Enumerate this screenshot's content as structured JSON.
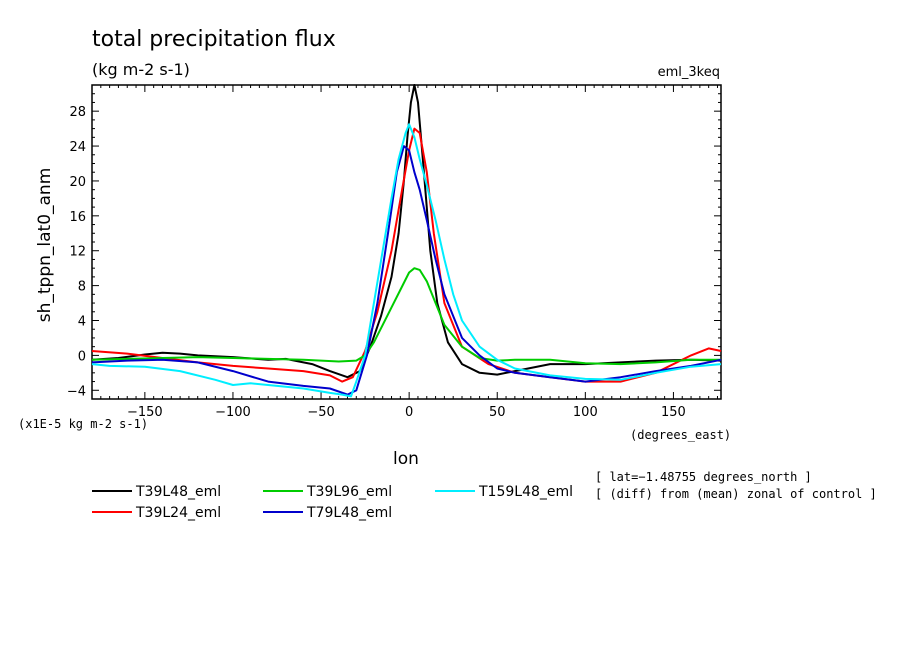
{
  "chart_data": {
    "type": "line",
    "title": "total precipitation flux",
    "units": "(kg m-2 s-1)",
    "experiment": "eml_3keq",
    "ylabel": "sh_tppn_lat0_anm",
    "xlabel": "lon",
    "x_units": "(degrees_east)",
    "y_scale_note": "(x1E-5 kg m-2 s-1)",
    "xlim": [
      -180,
      177
    ],
    "ylim": [
      -5,
      31
    ],
    "xticks": [
      -150,
      -100,
      -50,
      0,
      50,
      100,
      150
    ],
    "xtick_labels": [
      "−150",
      "−100",
      "−50",
      "0",
      "50",
      "100",
      "150"
    ],
    "yticks": [
      -4,
      0,
      4,
      8,
      12,
      16,
      20,
      24,
      28
    ],
    "ytick_labels": [
      "−4",
      "0",
      "4",
      "8",
      "12",
      "16",
      "20",
      "24",
      "28"
    ],
    "notes": [
      "[ lat=−1.48755 degrees_north ]",
      "[ (diff) from (mean) zonal of control ]"
    ],
    "legend_placement": "bottom",
    "grid": false,
    "series": [
      {
        "name": "T39L48_eml",
        "color": "#000000",
        "x": [
          -180,
          -165,
          -150,
          -140,
          -130,
          -120,
          -100,
          -80,
          -70,
          -55,
          -45,
          -35,
          -28,
          -22,
          -16,
          -10,
          -6,
          -3,
          -1,
          1,
          3,
          5,
          8,
          12,
          16,
          22,
          30,
          40,
          50,
          60,
          80,
          100,
          120,
          140,
          160,
          177
        ],
        "y": [
          -0.5,
          -0.3,
          0.1,
          0.3,
          0.2,
          0.0,
          -0.2,
          -0.5,
          -0.4,
          -1.0,
          -1.8,
          -2.5,
          -1.8,
          1.0,
          4.5,
          9.0,
          14.0,
          20.0,
          25.0,
          29.0,
          31.0,
          29.0,
          22.0,
          12.0,
          6.0,
          1.5,
          -1.0,
          -2.0,
          -2.2,
          -1.8,
          -1.0,
          -1.0,
          -0.8,
          -0.6,
          -0.5,
          -0.6
        ]
      },
      {
        "name": "T39L24_eml",
        "color": "#ff0000",
        "x": [
          -180,
          -160,
          -140,
          -120,
          -100,
          -80,
          -60,
          -45,
          -38,
          -32,
          -25,
          -18,
          -10,
          -4,
          0,
          3,
          6,
          10,
          14,
          20,
          30,
          45,
          60,
          80,
          100,
          120,
          140,
          160,
          170,
          177
        ],
        "y": [
          0.5,
          0.2,
          -0.3,
          -0.8,
          -1.2,
          -1.5,
          -1.8,
          -2.3,
          -3.0,
          -2.5,
          0.5,
          5.0,
          12.0,
          19.0,
          23.5,
          26.0,
          25.5,
          21.0,
          14.0,
          6.0,
          1.0,
          -1.0,
          -2.0,
          -2.5,
          -3.0,
          -3.0,
          -2.0,
          0.0,
          0.8,
          0.5
        ]
      },
      {
        "name": "T39L96_eml",
        "color": "#00cc00",
        "x": [
          -180,
          -160,
          -140,
          -120,
          -100,
          -80,
          -60,
          -40,
          -30,
          -25,
          -20,
          -15,
          -10,
          -5,
          0,
          3,
          6,
          10,
          15,
          20,
          30,
          40,
          50,
          60,
          80,
          100,
          120,
          140,
          160,
          177
        ],
        "y": [
          -0.5,
          -0.4,
          -0.3,
          -0.2,
          -0.3,
          -0.4,
          -0.5,
          -0.7,
          -0.6,
          0.0,
          1.5,
          3.5,
          5.5,
          7.5,
          9.5,
          10.0,
          9.8,
          8.5,
          6.0,
          3.5,
          1.0,
          -0.3,
          -0.6,
          -0.5,
          -0.5,
          -0.9,
          -1.0,
          -0.8,
          -0.5,
          -0.5
        ]
      },
      {
        "name": "T79L48_eml",
        "color": "#0000cc",
        "x": [
          -180,
          -160,
          -140,
          -120,
          -100,
          -80,
          -60,
          -45,
          -35,
          -30,
          -24,
          -18,
          -12,
          -7,
          -3,
          0,
          3,
          6,
          10,
          15,
          20,
          30,
          40,
          50,
          60,
          80,
          100,
          120,
          140,
          160,
          177
        ],
        "y": [
          -0.8,
          -0.6,
          -0.5,
          -0.8,
          -1.8,
          -3.0,
          -3.5,
          -3.8,
          -4.5,
          -4.0,
          0.0,
          6.0,
          14.0,
          21.0,
          24.0,
          23.5,
          21.0,
          19.0,
          15.5,
          11.0,
          7.0,
          2.0,
          0.0,
          -1.5,
          -2.0,
          -2.5,
          -3.0,
          -2.5,
          -1.8,
          -1.2,
          -0.5
        ]
      },
      {
        "name": "T159L48_eml",
        "color": "#00eeff",
        "x": [
          -180,
          -170,
          -150,
          -130,
          -110,
          -100,
          -90,
          -75,
          -60,
          -45,
          -38,
          -33,
          -30,
          -25,
          -20,
          -15,
          -10,
          -6,
          -2,
          0,
          3,
          6,
          10,
          15,
          20,
          25,
          30,
          40,
          50,
          60,
          80,
          100,
          120,
          140,
          160,
          177
        ],
        "y": [
          -1.0,
          -1.2,
          -1.3,
          -1.8,
          -2.8,
          -3.4,
          -3.2,
          -3.5,
          -3.8,
          -4.3,
          -4.5,
          -4.7,
          -3.0,
          0.0,
          6.0,
          12.0,
          18.0,
          22.5,
          25.5,
          26.5,
          25.0,
          22.5,
          19.5,
          15.5,
          11.0,
          7.0,
          4.0,
          1.0,
          -0.5,
          -1.5,
          -2.3,
          -2.7,
          -2.8,
          -2.0,
          -1.3,
          -1.0
        ]
      }
    ]
  }
}
